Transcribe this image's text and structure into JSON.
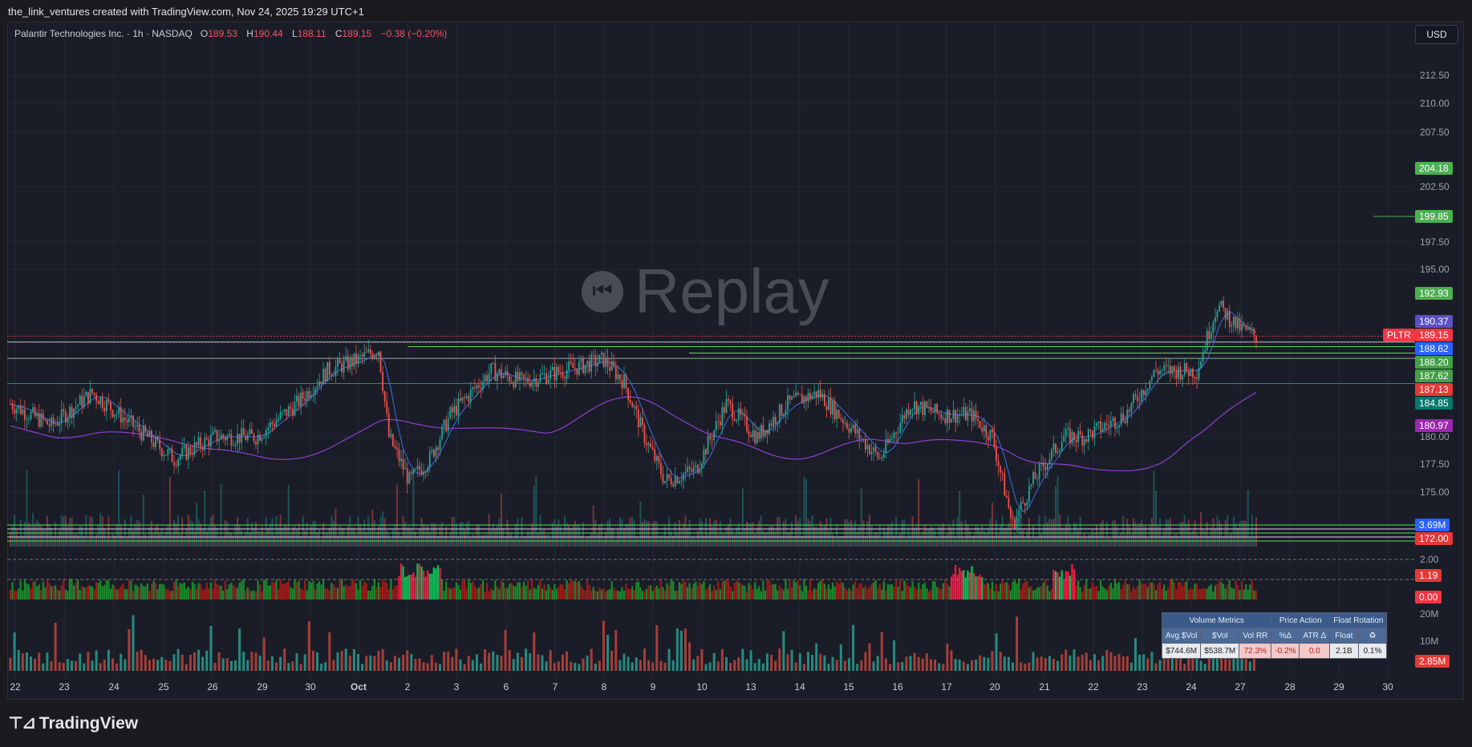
{
  "header": {
    "attribution": "the_link_ventures created with TradingView.com, Nov 24, 2025 19:29 UTC+1"
  },
  "legend": {
    "symbol": "Palantir Technologies Inc. · 1h · NASDAQ",
    "open_label": "O",
    "open": "189.53",
    "high_label": "H",
    "high": "190.44",
    "low_label": "L",
    "low": "188.11",
    "close_label": "C",
    "close": "189.15",
    "change": "−0.38 (−0.20%)"
  },
  "currency": "USD",
  "watermark": "Replay",
  "price_axis": [
    "212.50",
    "210.00",
    "207.50",
    "202.50",
    "197.50",
    "195.00",
    "180.00",
    "177.50",
    "175.00",
    "2.00",
    "20M",
    "10M"
  ],
  "price_tags": [
    {
      "text": "204.18",
      "color": "#4caf50"
    },
    {
      "text": "199.85",
      "color": "#4caf50"
    },
    {
      "text": "192.93",
      "color": "#4caf50"
    },
    {
      "text": "190.37",
      "color": "#5b4fc8"
    },
    {
      "text": "189.15",
      "color": "#f23645"
    },
    {
      "text": "188.62",
      "color": "#2962ff"
    },
    {
      "text": "188.20",
      "color": "#43a047"
    },
    {
      "text": "187.62",
      "color": "#43a047"
    },
    {
      "text": "187.13",
      "color": "#e53935"
    },
    {
      "text": "184.85",
      "color": "#00796b"
    },
    {
      "text": "180.97",
      "color": "#9c27b0"
    },
    {
      "text": "3.69M",
      "color": "#2962ff"
    },
    {
      "text": "172.00",
      "color": "#e53935"
    },
    {
      "text": "1.19",
      "color": "#e53935"
    },
    {
      "text": "0.00",
      "color": "#f23645"
    },
    {
      "text": "2.85M",
      "color": "#e53935"
    }
  ],
  "symbol_tag": "PLTR",
  "x_axis": [
    "22",
    "23",
    "24",
    "25",
    "26",
    "29",
    "30",
    "Oct",
    "2",
    "3",
    "6",
    "7",
    "8",
    "9",
    "10",
    "13",
    "14",
    "15",
    "16",
    "17",
    "20",
    "21",
    "22",
    "23",
    "24",
    "27",
    "28",
    "29",
    "30"
  ],
  "metrics_table": {
    "groups": [
      "Volume Metrics",
      "Price Action",
      "Float Rotation"
    ],
    "columns": [
      "Avg $Vol",
      "$Vol",
      "Vol RR",
      "%Δ",
      "ATR Δ",
      "Float",
      "♻"
    ],
    "values": [
      "$744.6M",
      "$538.7M",
      "72.3%",
      "-0.2%",
      "0.0",
      "2.1B",
      "0.1%"
    ]
  },
  "brand": "TradingView",
  "colors": {
    "up": "#26a69a",
    "down": "#ef5350",
    "background": "#1a1d27"
  }
}
